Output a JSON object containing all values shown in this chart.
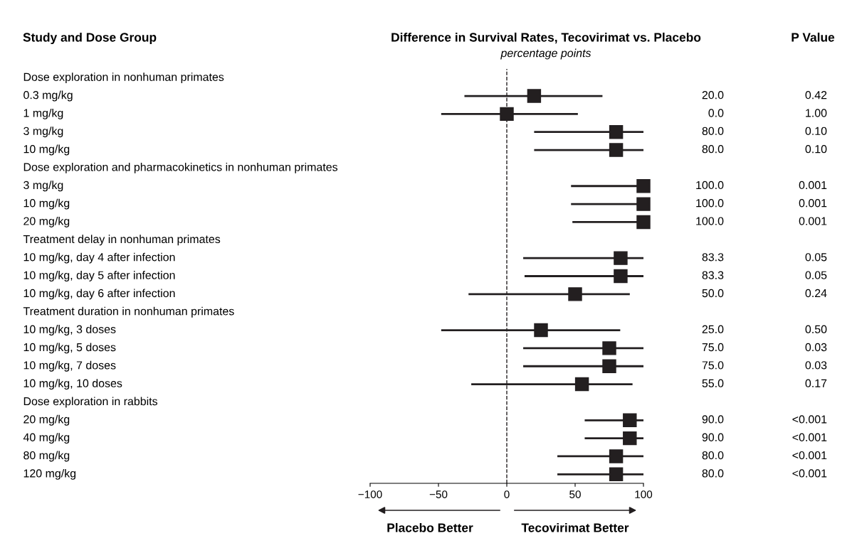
{
  "chart_data": {
    "type": "scatter",
    "orientation": "horizontal",
    "title": "Difference in Survival Rates, Tecovirimat vs. Placebo",
    "subtitle": "percentage points",
    "categories": [
      "Dose exploration in nonhuman primates",
      "0.3 mg/kg",
      "1 mg/kg",
      "3 mg/kg",
      "10 mg/kg",
      "Dose exploration and pharmacokinetics in nonhuman primates",
      "3 mg/kg",
      "10 mg/kg",
      "20 mg/kg",
      "Treatment delay in nonhuman primates",
      "10 mg/kg, day 4 after infection",
      "10 mg/kg, day 5 after infection",
      "10 mg/kg, day 6 after infection",
      "Treatment duration in nonhuman primates",
      "10 mg/kg, 3 doses",
      "10 mg/kg, 5 doses",
      "10 mg/kg, 7 doses",
      "10 mg/kg, 10 doses",
      "Dose exploration in rabbits",
      "20 mg/kg",
      "40 mg/kg",
      "80 mg/kg",
      "120 mg/kg"
    ],
    "values": [
      null,
      20.0,
      0.0,
      80.0,
      80.0,
      null,
      100.0,
      100.0,
      100.0,
      null,
      83.3,
      83.3,
      50.0,
      null,
      25.0,
      75.0,
      75.0,
      55.0,
      null,
      90.0,
      90.0,
      80.0,
      80.0
    ],
    "errors": [
      null,
      [
        -31,
        70
      ],
      [
        -48,
        52
      ],
      [
        20,
        100
      ],
      [
        20,
        100
      ],
      null,
      [
        47,
        100
      ],
      [
        47,
        100
      ],
      [
        48,
        100
      ],
      null,
      [
        12,
        100
      ],
      [
        13,
        100
      ],
      [
        -28,
        90
      ],
      null,
      [
        -48,
        83
      ],
      [
        12,
        100
      ],
      [
        12,
        100
      ],
      [
        -26,
        92
      ],
      null,
      [
        57,
        100
      ],
      [
        57,
        100
      ],
      [
        37,
        100
      ],
      [
        37,
        100
      ]
    ],
    "value_labels": [
      null,
      "20.0",
      "0.0",
      "80.0",
      "80.0",
      null,
      "100.0",
      "100.0",
      "100.0",
      null,
      "83.3",
      "83.3",
      "50.0",
      null,
      "25.0",
      "75.0",
      "75.0",
      "55.0",
      null,
      "90.0",
      "90.0",
      "80.0",
      "80.0"
    ],
    "color": "#231f20",
    "marker": "square",
    "xlim": [
      -100,
      100
    ],
    "xticks": [
      {
        "value": -100,
        "label": "−100"
      },
      {
        "value": -50,
        "label": "−50"
      },
      0,
      50,
      100
    ],
    "ref_lines": [
      {
        "axis": "x",
        "value": 0,
        "line_style": "dashed",
        "color": "#231f20"
      }
    ],
    "annotations": [
      "Study and Dose Group",
      "P Value",
      "Placebo Better",
      "Tecovirimat Better",
      "0.42",
      "1.00",
      "0.10",
      "0.10",
      "0.001",
      "0.001",
      "0.001",
      "0.05",
      "0.05",
      "0.24",
      "0.50",
      "0.03",
      "0.03",
      "0.17",
      "<0.001",
      "<0.001",
      "<0.001",
      "<0.001"
    ],
    "grid": false,
    "legend": false
  }
}
